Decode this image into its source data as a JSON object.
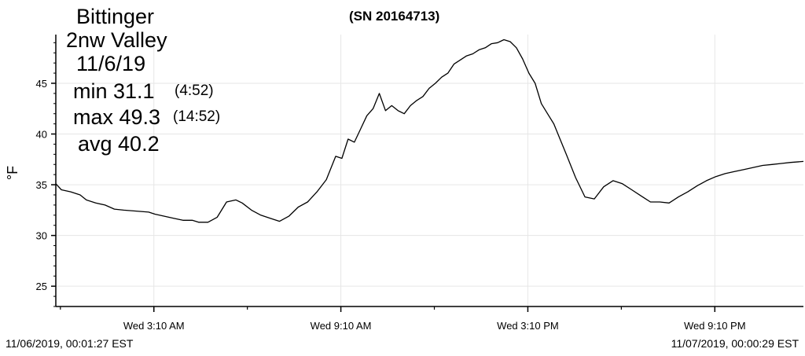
{
  "header": {
    "station_line1": "Bittinger",
    "station_line2": "2nw Valley",
    "date": "11/6/19",
    "min_label": "min 31.1",
    "min_time": "(4:52)",
    "max_label": "max 49.3",
    "max_time": "(14:52)",
    "avg_label": "avg 40.2",
    "serial": "(SN 20164713)"
  },
  "footer": {
    "start": "11/06/2019, 00:01:27 EST",
    "end": "11/07/2019, 00:00:29 EST"
  },
  "chart_data": {
    "type": "line",
    "title": "",
    "xlabel": "",
    "ylabel": "°F",
    "x_unit": "hours since 11/06/2019 00:00 EST",
    "xlim": [
      0.02,
      24.01
    ],
    "ylim": [
      23,
      49.8
    ],
    "y_ticks": [
      25,
      30,
      35,
      40,
      45
    ],
    "x_ticks": [
      {
        "x": 3.1667,
        "label": "Wed 3:10 AM"
      },
      {
        "x": 9.1667,
        "label": "Wed 9:10 AM"
      },
      {
        "x": 15.1667,
        "label": "Wed 3:10 PM"
      },
      {
        "x": 21.1667,
        "label": "Wed 9:10 PM"
      }
    ],
    "x_minor_ticks": [
      0.1667,
      6.1667,
      12.1667,
      18.1667
    ],
    "grid": true,
    "series": [
      {
        "name": "",
        "color": "#000000",
        "x": [
          0.02,
          0.2,
          0.5,
          0.8,
          1.0,
          1.3,
          1.6,
          1.9,
          2.2,
          2.6,
          3.0,
          3.2,
          3.5,
          3.8,
          4.1,
          4.4,
          4.6,
          4.9,
          5.2,
          5.5,
          5.8,
          6.0,
          6.3,
          6.6,
          6.9,
          7.2,
          7.5,
          7.8,
          8.1,
          8.4,
          8.7,
          9.0,
          9.2,
          9.4,
          9.6,
          9.8,
          10.0,
          10.2,
          10.4,
          10.6,
          10.8,
          11.0,
          11.2,
          11.4,
          11.6,
          11.8,
          12.0,
          12.2,
          12.4,
          12.6,
          12.8,
          13.0,
          13.2,
          13.4,
          13.6,
          13.8,
          14.0,
          14.2,
          14.4,
          14.6,
          14.8,
          15.0,
          15.2,
          15.4,
          15.6,
          15.8,
          16.0,
          16.2,
          16.4,
          16.7,
          17.0,
          17.3,
          17.6,
          17.9,
          18.2,
          18.5,
          18.8,
          19.1,
          19.4,
          19.7,
          20.0,
          20.3,
          20.6,
          20.9,
          21.2,
          21.5,
          21.8,
          22.1,
          22.4,
          22.7,
          23.0,
          23.3,
          23.6,
          24.01
        ],
        "y": [
          35.1,
          34.5,
          34.3,
          34.0,
          33.5,
          33.2,
          33.0,
          32.6,
          32.5,
          32.4,
          32.3,
          32.1,
          31.9,
          31.7,
          31.5,
          31.5,
          31.3,
          31.3,
          31.8,
          33.3,
          33.5,
          33.2,
          32.5,
          32.0,
          31.7,
          31.4,
          31.9,
          32.8,
          33.3,
          34.3,
          35.5,
          37.8,
          37.6,
          39.5,
          39.2,
          40.5,
          41.8,
          42.5,
          44.0,
          42.3,
          42.8,
          42.3,
          42.0,
          42.8,
          43.3,
          43.7,
          44.5,
          45.0,
          45.6,
          46.0,
          46.9,
          47.3,
          47.7,
          47.9,
          48.3,
          48.5,
          48.9,
          49.0,
          49.3,
          49.1,
          48.5,
          47.4,
          46.0,
          45.0,
          43.0,
          42.0,
          41.0,
          39.5,
          38.0,
          35.7,
          33.8,
          33.6,
          34.8,
          35.4,
          35.1,
          34.5,
          33.9,
          33.3,
          33.3,
          33.2,
          33.8,
          34.3,
          34.9,
          35.4,
          35.8,
          36.1,
          36.3,
          36.5,
          36.7,
          36.9,
          37.0,
          37.1,
          37.2,
          37.3
        ]
      }
    ]
  }
}
